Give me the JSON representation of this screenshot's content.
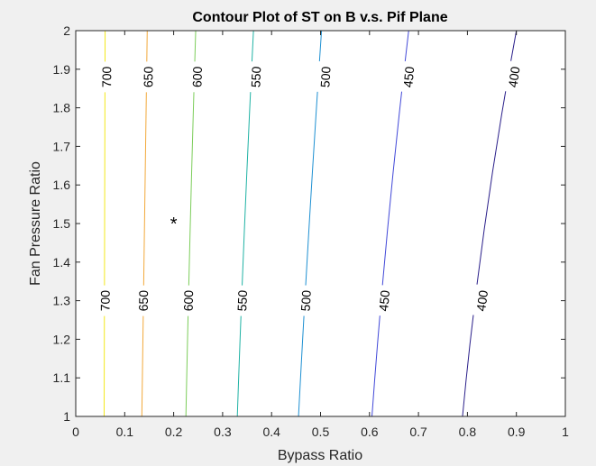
{
  "chart_data": {
    "type": "contour",
    "title": "Contour Plot of ST on B v.s. Pif Plane",
    "xlabel": "Bypass Ratio",
    "ylabel": "Fan Pressure Ratio",
    "xlim": [
      0,
      1
    ],
    "ylim": [
      1,
      2
    ],
    "xticks": [
      "0",
      "0.1",
      "0.2",
      "0.3",
      "0.4",
      "0.5",
      "0.6",
      "0.7",
      "0.8",
      "0.9",
      "1"
    ],
    "yticks": [
      "1",
      "1.1",
      "1.2",
      "1.3",
      "1.4",
      "1.5",
      "1.6",
      "1.7",
      "1.8",
      "1.9",
      "2"
    ],
    "grid": false,
    "contours": [
      {
        "level": "700",
        "color": "#f3e81c",
        "points": [
          [
            0.058,
            1.0
          ],
          [
            0.059,
            1.5
          ],
          [
            0.06,
            2.0
          ]
        ],
        "label_positions": [
          [
            0.06,
            1.3
          ],
          [
            0.063,
            1.88
          ]
        ]
      },
      {
        "level": "650",
        "color": "#f2a93b",
        "points": [
          [
            0.135,
            1.0
          ],
          [
            0.14,
            1.5
          ],
          [
            0.146,
            2.0
          ]
        ],
        "label_positions": [
          [
            0.138,
            1.3
          ],
          [
            0.148,
            1.88
          ]
        ]
      },
      {
        "level": "600",
        "color": "#7ccd5a",
        "points": [
          [
            0.225,
            1.0
          ],
          [
            0.234,
            1.5
          ],
          [
            0.245,
            2.0
          ]
        ],
        "label_positions": [
          [
            0.23,
            1.3
          ],
          [
            0.248,
            1.88
          ]
        ]
      },
      {
        "level": "550",
        "color": "#1fb2a4",
        "points": [
          [
            0.33,
            1.0
          ],
          [
            0.345,
            1.5
          ],
          [
            0.363,
            2.0
          ]
        ],
        "label_positions": [
          [
            0.34,
            1.3
          ],
          [
            0.368,
            1.88
          ]
        ]
      },
      {
        "level": "500",
        "color": "#1e90d2",
        "points": [
          [
            0.455,
            1.0
          ],
          [
            0.477,
            1.5
          ],
          [
            0.502,
            2.0
          ]
        ],
        "label_positions": [
          [
            0.47,
            1.3
          ],
          [
            0.51,
            1.88
          ]
        ]
      },
      {
        "level": "450",
        "color": "#4148d8",
        "points": [
          [
            0.605,
            1.0
          ],
          [
            0.638,
            1.5
          ],
          [
            0.68,
            2.0
          ]
        ],
        "label_positions": [
          [
            0.63,
            1.3
          ],
          [
            0.68,
            1.88
          ]
        ]
      },
      {
        "level": "400",
        "color": "#2a1f8a",
        "points": [
          [
            0.79,
            1.0
          ],
          [
            0.836,
            1.5
          ],
          [
            0.9,
            2.0
          ]
        ],
        "label_positions": [
          [
            0.83,
            1.3
          ],
          [
            0.895,
            1.88
          ]
        ]
      }
    ],
    "marker": {
      "x": 0.2,
      "y": 1.5,
      "symbol": "*"
    }
  }
}
